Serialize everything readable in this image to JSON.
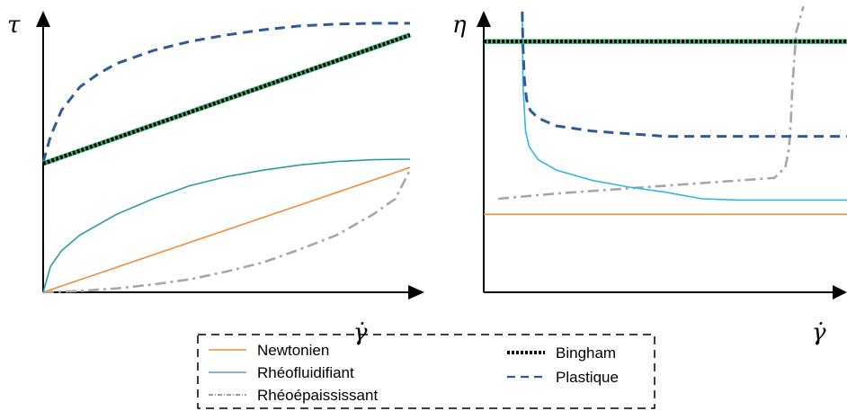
{
  "chart_data": [
    {
      "type": "line",
      "ylabel": "τ",
      "xlabel": "γ̇",
      "xlim": [
        0,
        1
      ],
      "ylim": [
        0,
        1
      ],
      "series": [
        {
          "name": "Newtonien",
          "color": "#F08A3C",
          "style": "solid",
          "x": [
            0,
            0.25,
            0.5,
            0.75,
            1.0
          ],
          "y": [
            0,
            0.12,
            0.24,
            0.36,
            0.48
          ]
        },
        {
          "name": "Rhéofluidifiant",
          "color": "#2E9A9A",
          "style": "solid",
          "x": [
            0,
            0.02,
            0.05,
            0.1,
            0.2,
            0.3,
            0.4,
            0.5,
            0.6,
            0.7,
            0.8,
            0.9,
            1.0
          ],
          "y": [
            0,
            0.1,
            0.16,
            0.22,
            0.3,
            0.36,
            0.41,
            0.445,
            0.47,
            0.49,
            0.503,
            0.51,
            0.512
          ]
        },
        {
          "name": "Rhéoépaississant",
          "color": "#A6A6A6",
          "style": "dashdot",
          "x": [
            0,
            0.1,
            0.2,
            0.3,
            0.4,
            0.5,
            0.6,
            0.7,
            0.8,
            0.9,
            0.96,
            1.0
          ],
          "y": [
            0,
            0.005,
            0.015,
            0.03,
            0.05,
            0.08,
            0.115,
            0.165,
            0.22,
            0.3,
            0.36,
            0.47
          ]
        },
        {
          "name": "Bingham",
          "color": "#000000",
          "style": "dotted",
          "accent": "#3CB371",
          "x": [
            0,
            1.0
          ],
          "y": [
            0.495,
            0.99
          ]
        },
        {
          "name": "Plastique",
          "color": "#2E5B96",
          "style": "dashed",
          "x": [
            0,
            0.02,
            0.05,
            0.1,
            0.15,
            0.2,
            0.3,
            0.4,
            0.5,
            0.6,
            0.7,
            0.8,
            0.9,
            1.0
          ],
          "y": [
            0.5,
            0.6,
            0.7,
            0.79,
            0.84,
            0.88,
            0.93,
            0.965,
            0.99,
            1.01,
            1.025,
            1.032,
            1.035,
            1.035
          ]
        }
      ]
    },
    {
      "type": "line",
      "ylabel": "η",
      "xlabel": "γ̇",
      "xlim": [
        0,
        1
      ],
      "ylim": [
        0,
        1
      ],
      "series": [
        {
          "name": "Newtonien",
          "color": "#F08A3C",
          "style": "solid",
          "x": [
            0,
            1.0
          ],
          "y": [
            0.3,
            0.3
          ]
        },
        {
          "name": "Rhéofluidifiant",
          "color": "#33B5E5",
          "style": "solid",
          "x": [
            0.106,
            0.108,
            0.115,
            0.125,
            0.15,
            0.2,
            0.3,
            0.4,
            0.5,
            0.6,
            0.7,
            1.0
          ],
          "y": [
            1.08,
            0.8,
            0.62,
            0.56,
            0.51,
            0.47,
            0.43,
            0.405,
            0.385,
            0.36,
            0.355,
            0.355
          ]
        },
        {
          "name": "Rhéoépaississant",
          "color": "#A6A6A6",
          "style": "dashdot",
          "x": [
            0.04,
            0.2,
            0.4,
            0.6,
            0.75,
            0.8,
            0.83,
            0.84,
            0.845,
            0.85,
            0.86,
            0.88
          ],
          "y": [
            0.36,
            0.38,
            0.4,
            0.42,
            0.435,
            0.44,
            0.48,
            0.55,
            0.65,
            0.8,
            1.0,
            1.1
          ]
        },
        {
          "name": "Bingham",
          "color": "#000000",
          "style": "dotted",
          "accent": "#3CB371",
          "x": [
            0,
            1.0
          ],
          "y": [
            0.965,
            0.965
          ]
        },
        {
          "name": "Plastique",
          "color": "#2E5B96",
          "style": "dashed",
          "x": [
            0.106,
            0.108,
            0.112,
            0.118,
            0.128,
            0.15,
            0.2,
            0.3,
            0.4,
            0.5,
            0.6,
            0.8,
            1.0
          ],
          "y": [
            1.08,
            0.95,
            0.82,
            0.74,
            0.7,
            0.67,
            0.64,
            0.62,
            0.61,
            0.6,
            0.6,
            0.6,
            0.6
          ]
        }
      ]
    }
  ],
  "legend": {
    "items": [
      {
        "label": "Newtonien",
        "color": "#F08A3C",
        "style": "solid"
      },
      {
        "label": "Rhéofluidifiant",
        "color": "#5B9BD5",
        "style": "solid"
      },
      {
        "label": "Rhéoépaississant",
        "color": "#333333",
        "style": "dashdot"
      },
      {
        "label": "Bingham",
        "color": "#000000",
        "style": "dotted"
      },
      {
        "label": "Plastique",
        "color": "#2E5B96",
        "style": "dashed"
      }
    ]
  }
}
